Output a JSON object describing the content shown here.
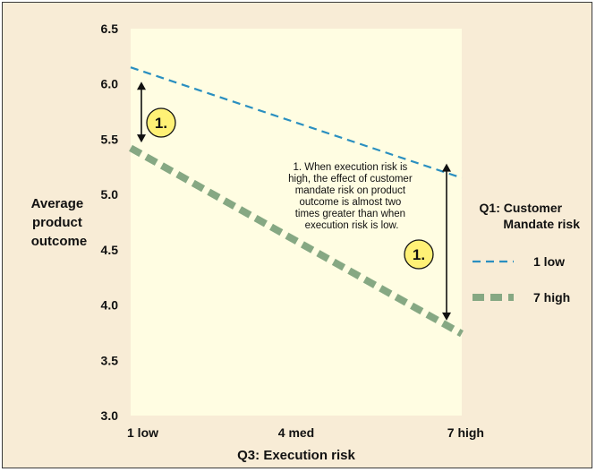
{
  "chart_data": {
    "type": "line",
    "categories": [
      "1 low",
      "4 med",
      "7 high"
    ],
    "x": [
      1,
      4,
      7
    ],
    "xlabel": "Q3: Execution risk",
    "ylabel": "Average product outcome",
    "ylim": [
      3.0,
      6.5
    ],
    "yticks": [
      "3.0",
      "3.5",
      "4.0",
      "4.5",
      "5.0",
      "5.5",
      "6.0",
      "6.5"
    ],
    "grid": false,
    "legend_position": "right",
    "legend_title": "Q1: Customer Mandate risk",
    "series": [
      {
        "name": "1 low",
        "values": [
          6.15,
          5.65,
          5.15
        ],
        "color": "#2a8fc0",
        "style": "dashed"
      },
      {
        "name": "7 high",
        "values": [
          5.42,
          4.58,
          3.74
        ],
        "color": "#86a883",
        "style": "thick-dashed"
      }
    ],
    "annotations": {
      "badge_label": "1.",
      "note": "1. When execution risk is high, the effect of customer mandate risk on product outcome is almost two times greater than when execution risk is low."
    }
  },
  "colors": {
    "background": "#f8ecd6",
    "plot_area": "#fffde2",
    "badge_fill": "#fff176"
  }
}
